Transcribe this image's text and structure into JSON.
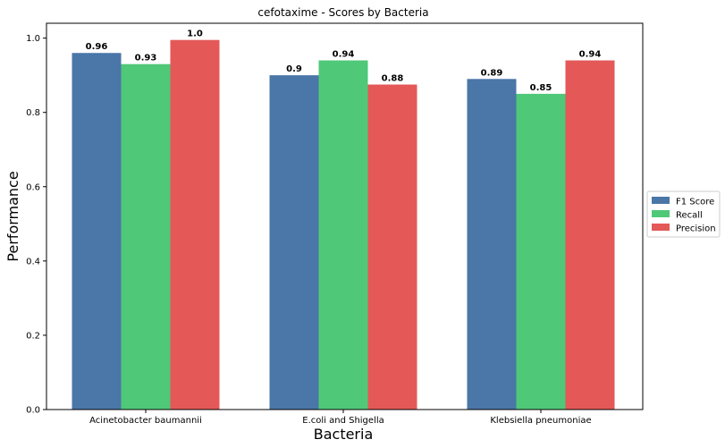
{
  "chart_data": {
    "type": "bar",
    "title": "cefotaxime - Scores by Bacteria",
    "xlabel": "Bacteria",
    "ylabel": "Performance",
    "categories": [
      "Acinetobacter baumannii",
      "E.coli and Shigella",
      "Klebsiella pneumoniae"
    ],
    "ylim": [
      0,
      1.04
    ],
    "yticks": [
      0.0,
      0.2,
      0.4,
      0.6,
      0.8,
      1.0
    ],
    "ytick_labels": [
      "0.0",
      "0.2",
      "0.4",
      "0.6",
      "0.8",
      "1.0"
    ],
    "grid": false,
    "legend_position": "right",
    "series": [
      {
        "name": "F1 Score",
        "color": "#4a76a8",
        "values": [
          0.96,
          0.9,
          0.89
        ],
        "labels": [
          "0.96",
          "0.9",
          "0.89"
        ]
      },
      {
        "name": "Recall",
        "color": "#4fc878",
        "values": [
          0.93,
          0.94,
          0.85
        ],
        "labels": [
          "0.93",
          "0.94",
          "0.85"
        ]
      },
      {
        "name": "Precision",
        "color": "#e45858",
        "values": [
          0.995,
          0.875,
          0.94
        ],
        "labels": [
          "1.0",
          "0.88",
          "0.94"
        ]
      }
    ]
  }
}
